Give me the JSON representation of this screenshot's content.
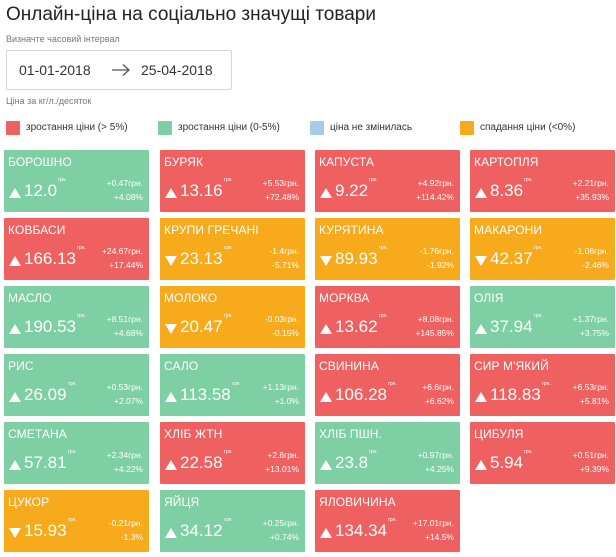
{
  "header": {
    "title": "Онлайн-ціна на соціально значущі товари",
    "interval_label": "Визначте часовий інтервал",
    "date_from": "01-01-2018",
    "date_to": "25-04-2018",
    "unit_note": "Ціна за кг/л./десяток"
  },
  "legend": [
    {
      "label": "зростання ціни (> 5%)",
      "color": "#ef6061"
    },
    {
      "label": "зростання ціни (0-5%)",
      "color": "#7ecfa3"
    },
    {
      "label": "ціна не змінилась",
      "color": "#a8cce6"
    },
    {
      "label": "спадання ціни (<0%)",
      "color": "#f7aa1c"
    }
  ],
  "unit_label": "грн.",
  "tiles": [
    {
      "name": "БОРОШНО",
      "price": "12.0",
      "abs": "+0.47грн.",
      "pct": "+4.08%",
      "trend": "up",
      "color": "green"
    },
    {
      "name": "БУРЯК",
      "price": "13.16",
      "abs": "+5.53грн.",
      "pct": "+72.48%",
      "trend": "up",
      "color": "red"
    },
    {
      "name": "КАПУСТА",
      "price": "9.22",
      "abs": "+4.92грн.",
      "pct": "+114.42%",
      "trend": "up",
      "color": "red"
    },
    {
      "name": "КАРТОПЛЯ",
      "price": "8.36",
      "abs": "+2.21грн.",
      "pct": "+35.93%",
      "trend": "up",
      "color": "red"
    },
    {
      "name": "КОВБАСИ",
      "price": "166.13",
      "abs": "+24.67грн.",
      "pct": "+17.44%",
      "trend": "up",
      "color": "red"
    },
    {
      "name": "КРУПИ ГРЕЧАНІ",
      "price": "23.13",
      "abs": "-1.4грн.",
      "pct": "-5.71%",
      "trend": "down",
      "color": "orange"
    },
    {
      "name": "КУРЯТИНА",
      "price": "89.93",
      "abs": "-1.76грн.",
      "pct": "-1.92%",
      "trend": "down",
      "color": "orange"
    },
    {
      "name": "МАКАРОНИ",
      "price": "42.37",
      "abs": "-1.06грн.",
      "pct": "-2.46%",
      "trend": "down",
      "color": "orange"
    },
    {
      "name": "МАСЛО",
      "price": "190.53",
      "abs": "+8.51грн.",
      "pct": "+4.68%",
      "trend": "up",
      "color": "green"
    },
    {
      "name": "МОЛОКО",
      "price": "20.47",
      "abs": "-0.03грн.",
      "pct": "-0.15%",
      "trend": "down",
      "color": "orange"
    },
    {
      "name": "МОРКВА",
      "price": "13.62",
      "abs": "+8.08грн.",
      "pct": "+145.85%",
      "trend": "up",
      "color": "red"
    },
    {
      "name": "ОЛІЯ",
      "price": "37.94",
      "abs": "+1.37грн.",
      "pct": "+3.75%",
      "trend": "up",
      "color": "green"
    },
    {
      "name": "РИС",
      "price": "26.09",
      "abs": "+0.53грн.",
      "pct": "+2.07%",
      "trend": "up",
      "color": "green"
    },
    {
      "name": "САЛО",
      "price": "113.58",
      "abs": "+1.13грн.",
      "pct": "+1.0%",
      "trend": "up",
      "color": "green"
    },
    {
      "name": "СВИНИНА",
      "price": "106.28",
      "abs": "+6.6грн.",
      "pct": "+6.62%",
      "trend": "up",
      "color": "red"
    },
    {
      "name": "СИР М'ЯКИЙ",
      "price": "118.83",
      "abs": "+6.53грн.",
      "pct": "+5.81%",
      "trend": "up",
      "color": "red"
    },
    {
      "name": "СМЕТАНА",
      "price": "57.81",
      "abs": "+2.34грн.",
      "pct": "+4.22%",
      "trend": "up",
      "color": "green"
    },
    {
      "name": "ХЛІБ ЖТН",
      "price": "22.58",
      "abs": "+2.6грн.",
      "pct": "+13.01%",
      "trend": "up",
      "color": "red"
    },
    {
      "name": "ХЛІБ ПШН.",
      "price": "23.8",
      "abs": "+0.97грн.",
      "pct": "+4.25%",
      "trend": "up",
      "color": "green"
    },
    {
      "name": "ЦИБУЛЯ",
      "price": "5.94",
      "abs": "+0.51грн.",
      "pct": "+9.39%",
      "trend": "up",
      "color": "red"
    },
    {
      "name": "ЦУКОР",
      "price": "15.93",
      "abs": "-0.21грн.",
      "pct": "-1.3%",
      "trend": "down",
      "color": "orange"
    },
    {
      "name": "ЯЙЦЯ",
      "price": "34.12",
      "abs": "+0.25грн.",
      "pct": "+0.74%",
      "trend": "up",
      "color": "green"
    },
    {
      "name": "ЯЛОВИЧИНА",
      "price": "134.34",
      "abs": "+17.01грн.",
      "pct": "+14.5%",
      "trend": "up",
      "color": "red"
    }
  ]
}
